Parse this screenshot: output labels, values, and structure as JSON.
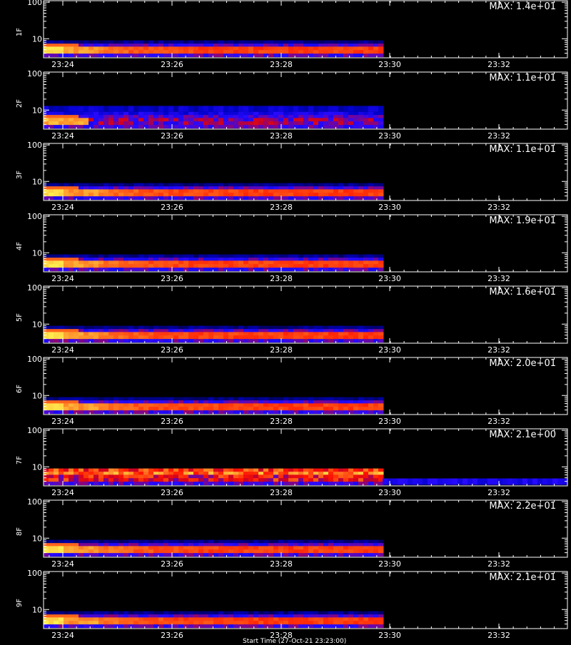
{
  "chart_data": {
    "type": "heatmap",
    "x_ticks": [
      "23:24",
      "23:26",
      "23:28",
      "23:30",
      "23:32"
    ],
    "y_ticks": [
      "100",
      "10"
    ],
    "yscale": "log",
    "ylim": [
      3,
      110
    ],
    "panels": [
      {
        "ylabel": "1F",
        "max_label": "MAX: 1.4e+01",
        "max": 14.0
      },
      {
        "ylabel": "2F",
        "max_label": "MAX: 1.1e+01",
        "max": 11.0
      },
      {
        "ylabel": "3F",
        "max_label": "MAX: 1.1e+01",
        "max": 11.0
      },
      {
        "ylabel": "4F",
        "max_label": "MAX: 1.9e+01",
        "max": 19.0
      },
      {
        "ylabel": "5F",
        "max_label": "MAX: 1.6e+01",
        "max": 16.0
      },
      {
        "ylabel": "6F",
        "max_label": "MAX: 2.0e+01",
        "max": 20.0
      },
      {
        "ylabel": "7F",
        "max_label": "MAX: 2.1e+00",
        "max": 2.1
      },
      {
        "ylabel": "8F",
        "max_label": "MAX: 2.2e+01",
        "max": 22.0
      },
      {
        "ylabel": "9F",
        "max_label": "MAX: 2.1e+01",
        "max": 21.0
      }
    ],
    "colors": {
      "background": "#000000",
      "axes": "#ffffff",
      "text": "#ffffff"
    }
  },
  "footer_text": "Start Time (27-Oct-21 23:23:00)"
}
